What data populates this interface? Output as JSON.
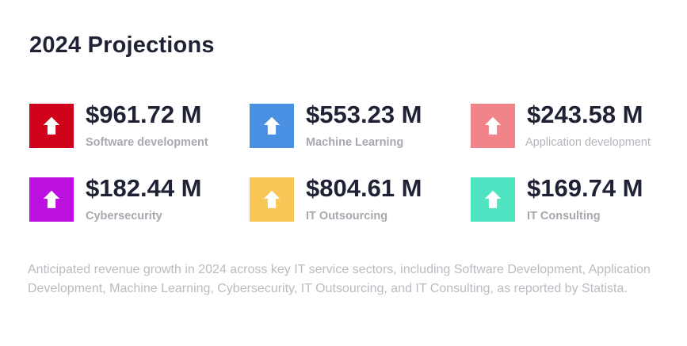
{
  "header": {
    "title": "2024 Projections"
  },
  "cards": [
    {
      "value": "$961.72 M",
      "label": "Software development",
      "color": "#d0021b",
      "icon": "arrow-up-icon"
    },
    {
      "value": "$553.23 M",
      "label": "Machine Learning",
      "color": "#4a90e2",
      "icon": "arrow-up-icon"
    },
    {
      "value": "$243.58 M",
      "label": "Application development",
      "color": "#f08489",
      "icon": "arrow-up-icon"
    },
    {
      "value": "$182.44 M",
      "label": "Cybersecurity",
      "color": "#bd10e0",
      "icon": "arrow-up-icon"
    },
    {
      "value": "$804.61 M",
      "label": "IT Outsourcing",
      "color": "#f8c757",
      "icon": "arrow-up-icon"
    },
    {
      "value": "$169.74 M",
      "label": "IT Consulting",
      "color": "#50e3c2",
      "icon": "arrow-up-icon"
    }
  ],
  "footer": {
    "description": "Anticipated revenue growth in 2024 across key IT service sectors, including Software Development, Application Development, Machine Learning, Cybersecurity, IT Outsourcing, and IT Consulting, as reported by Statista."
  }
}
